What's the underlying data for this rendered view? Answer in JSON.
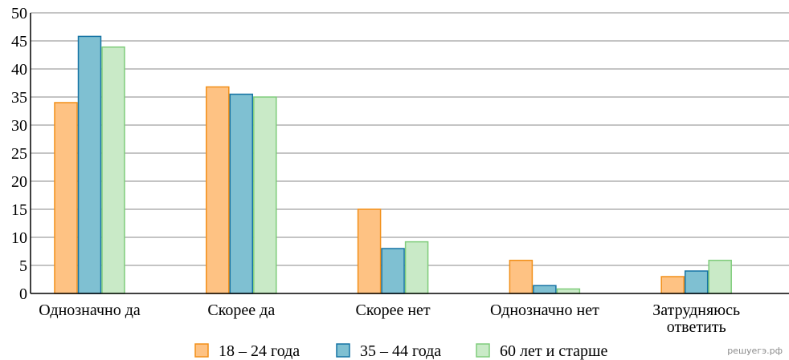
{
  "chart_data": {
    "type": "bar",
    "categories": [
      [
        "Однозначно да"
      ],
      [
        "Скорее да"
      ],
      [
        "Скорее нет"
      ],
      [
        "Однозначно нет"
      ],
      [
        "Затрудняюсь",
        "ответить"
      ]
    ],
    "series": [
      {
        "name": "18 – 24 года",
        "values": [
          34,
          36.8,
          15,
          5.9,
          3
        ],
        "fill": "#fec283",
        "stroke": "#f28f18"
      },
      {
        "name": "35 – 44 года",
        "values": [
          45.8,
          35.5,
          8,
          1.4,
          4
        ],
        "fill": "#7fc0d2",
        "stroke": "#1573a4"
      },
      {
        "name": "60 лет и старше",
        "values": [
          43.9,
          35,
          9.2,
          0.8,
          5.9
        ],
        "fill": "#c9eac7",
        "stroke": "#7fcc7b"
      }
    ],
    "ylim": [
      0,
      50
    ],
    "yticks": [
      "0",
      "5",
      "10",
      "15",
      "20",
      "25",
      "30",
      "35",
      "40",
      "45",
      "50"
    ],
    "grid": true,
    "legend": "bottom"
  },
  "watermark": "решуегэ.рф"
}
